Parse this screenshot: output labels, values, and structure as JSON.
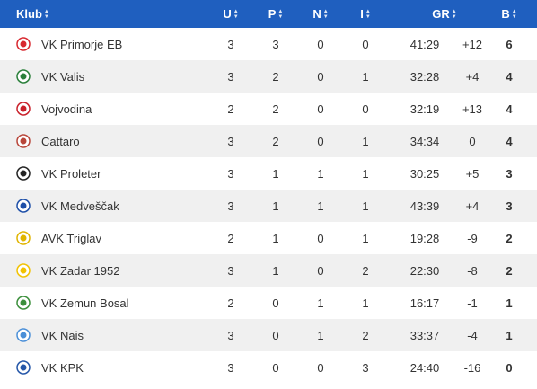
{
  "header": {
    "club": "Klub",
    "u": "U",
    "p": "P",
    "n": "N",
    "i": "I",
    "gr": "GR",
    "b": "B"
  },
  "rows": [
    {
      "club": "VK Primorje EB",
      "u": "3",
      "p": "3",
      "n": "0",
      "i": "0",
      "gr": "41:29",
      "diff": "+12",
      "b": "6",
      "logo_color": "#d8282f",
      "logo_icon": "primorje-crest-icon"
    },
    {
      "club": "VK Valis",
      "u": "3",
      "p": "2",
      "n": "0",
      "i": "1",
      "gr": "32:28",
      "diff": "+4",
      "b": "4",
      "logo_color": "#2a7f3a",
      "logo_icon": "valis-crest-icon"
    },
    {
      "club": "Vojvodina",
      "u": "2",
      "p": "2",
      "n": "0",
      "i": "0",
      "gr": "32:19",
      "diff": "+13",
      "b": "4",
      "logo_color": "#c9202a",
      "logo_icon": "vojvodina-crest-icon"
    },
    {
      "club": "Cattaro",
      "u": "3",
      "p": "2",
      "n": "0",
      "i": "1",
      "gr": "34:34",
      "diff": "0",
      "b": "4",
      "logo_color": "#b8463a",
      "logo_icon": "cattaro-crest-icon"
    },
    {
      "club": "VK Proleter",
      "u": "3",
      "p": "1",
      "n": "1",
      "i": "1",
      "gr": "30:25",
      "diff": "+5",
      "b": "3",
      "logo_color": "#222222",
      "logo_icon": "proleter-crest-icon"
    },
    {
      "club": "VK Medveščak",
      "u": "3",
      "p": "1",
      "n": "1",
      "i": "1",
      "gr": "43:39",
      "diff": "+4",
      "b": "3",
      "logo_color": "#1e4fa8",
      "logo_icon": "medvescak-crest-icon"
    },
    {
      "club": "AVK Triglav",
      "u": "2",
      "p": "1",
      "n": "0",
      "i": "1",
      "gr": "19:28",
      "diff": "-9",
      "b": "2",
      "logo_color": "#e0b400",
      "logo_icon": "triglav-crest-icon"
    },
    {
      "club": "VK Zadar 1952",
      "u": "3",
      "p": "1",
      "n": "0",
      "i": "2",
      "gr": "22:30",
      "diff": "-8",
      "b": "2",
      "logo_color": "#f2c200",
      "logo_icon": "zadar-crest-icon"
    },
    {
      "club": "VK Zemun Bosal",
      "u": "2",
      "p": "0",
      "n": "1",
      "i": "1",
      "gr": "16:17",
      "diff": "-1",
      "b": "1",
      "logo_color": "#3b8f3b",
      "logo_icon": "zemun-crest-icon"
    },
    {
      "club": "VK Nais",
      "u": "3",
      "p": "0",
      "n": "1",
      "i": "2",
      "gr": "33:37",
      "diff": "-4",
      "b": "1",
      "logo_color": "#4a8fd8",
      "logo_icon": "nais-crest-icon"
    },
    {
      "club": "VK KPK",
      "u": "3",
      "p": "0",
      "n": "0",
      "i": "3",
      "gr": "24:40",
      "diff": "-16",
      "b": "0",
      "logo_color": "#2456a8",
      "logo_icon": "kpk-crest-icon"
    }
  ],
  "colors": {
    "header_bg": "#1f5fbf",
    "row_alt_bg": "#f0f0f0"
  }
}
